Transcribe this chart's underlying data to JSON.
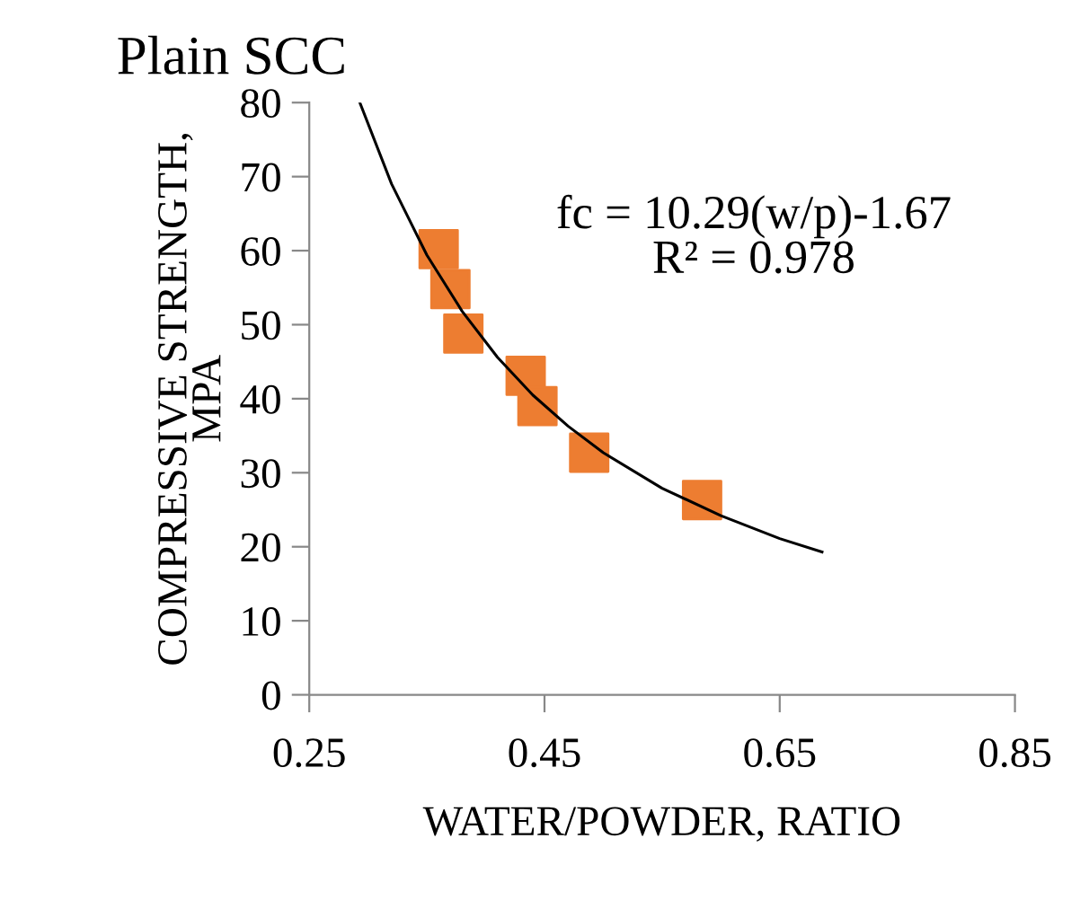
{
  "chart_data": {
    "type": "scatter",
    "title": "Plain SCC",
    "xlabel": "WATER/POWDER, RATIO",
    "ylabel": "COMPRESSIVE STRENGTH,\nMPA",
    "annotations": [
      "fc = 10.29(w/p)-1.67\nR² = 0.978"
    ],
    "xlim": [
      0.25,
      0.85
    ],
    "xticks": [
      0.25,
      0.45,
      0.65,
      0.85
    ],
    "ylim": [
      0,
      80
    ],
    "yticks": [
      0,
      10,
      20,
      30,
      40,
      50,
      60,
      70,
      80
    ],
    "grid": false,
    "legend": false,
    "marker": "square",
    "series": [
      {
        "color": "#ed7d31",
        "x": [
          0.36,
          0.37,
          0.381,
          0.434,
          0.444,
          0.488,
          0.584
        ],
        "values": [
          60.2,
          54.8,
          48.8,
          43.1,
          39.0,
          32.7,
          26.3
        ]
      },
      {
        "type": "line",
        "color": "#000000",
        "line_style": "solid",
        "marker": "none",
        "x": [
          0.293,
          0.32,
          0.35,
          0.38,
          0.41,
          0.44,
          0.47,
          0.5,
          0.55,
          0.6,
          0.65,
          0.686
        ],
        "values": [
          80,
          69.0,
          59.4,
          51.8,
          45.6,
          40.5,
          36.3,
          32.7,
          27.9,
          24.2,
          21.1,
          19.3
        ]
      }
    ]
  }
}
